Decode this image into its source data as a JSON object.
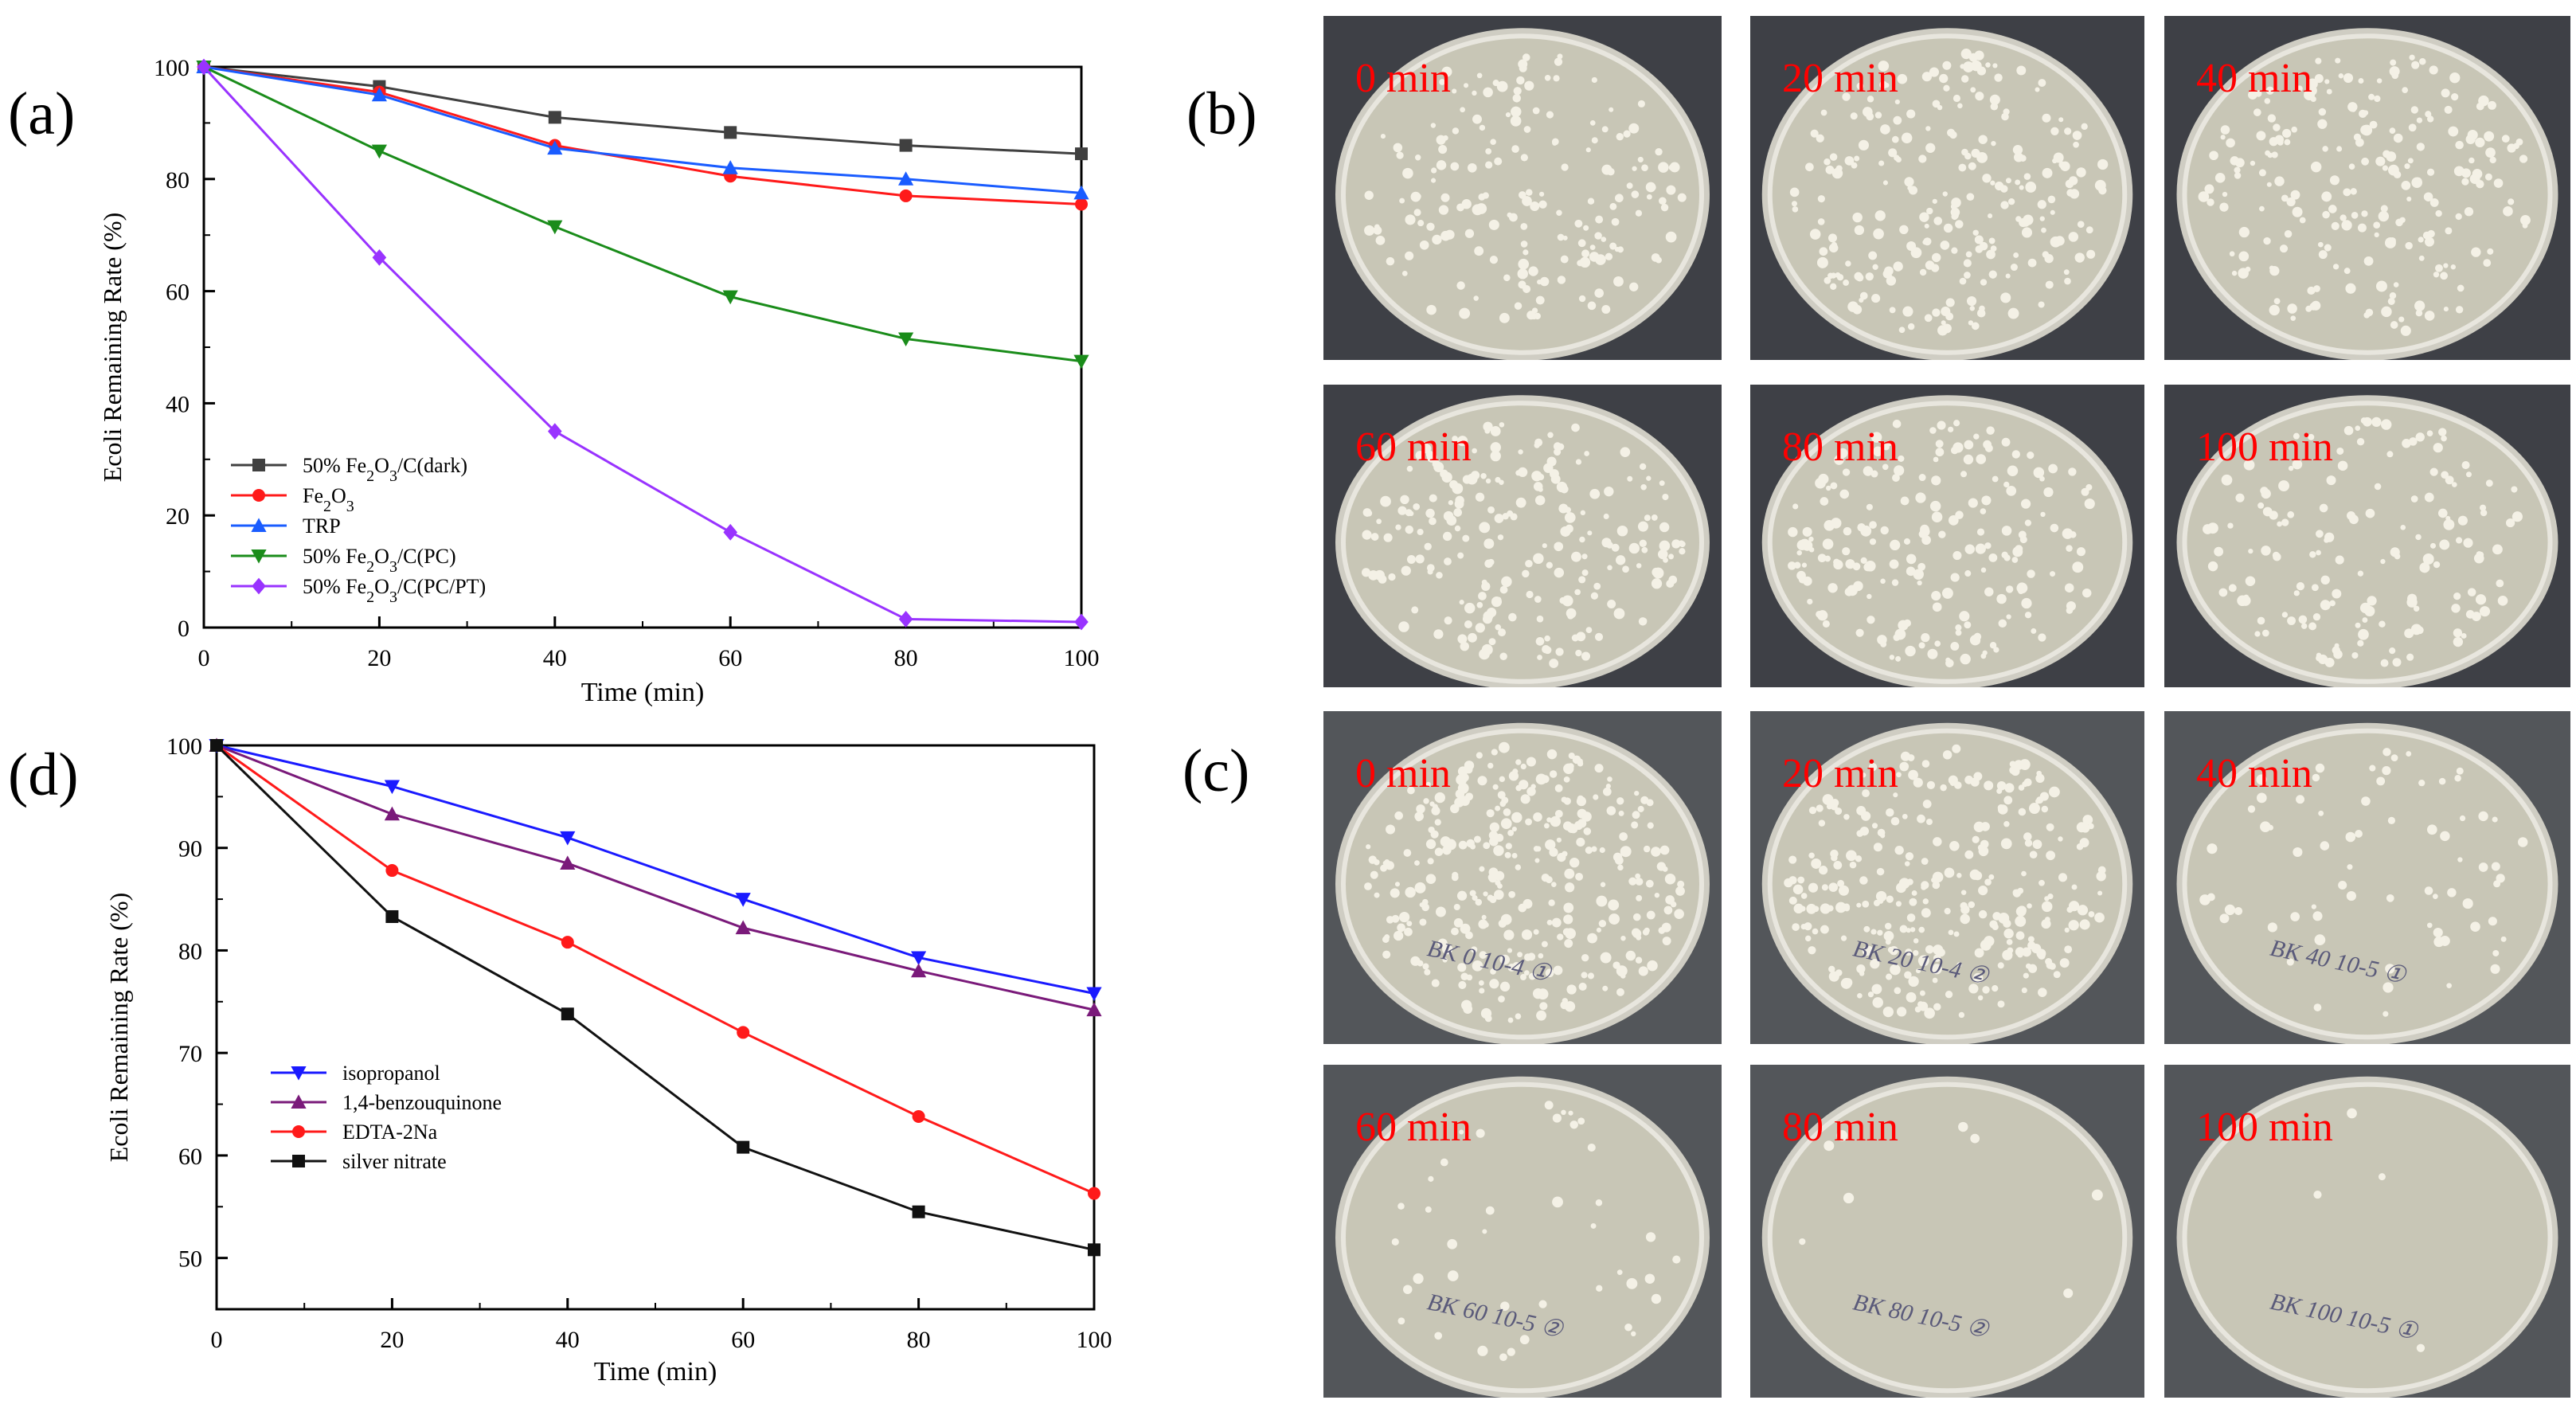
{
  "labels": {
    "a": "(a)",
    "b": "(b)",
    "c": "(c)",
    "d": "(d)"
  },
  "chart_data": [
    {
      "type": "line",
      "panel": "(a)",
      "xlabel": "Time (min)",
      "ylabel": "Ecoli Remaining Rate (%)",
      "xlim": [
        0,
        100
      ],
      "ylim": [
        0,
        100
      ],
      "xticks": [
        0,
        20,
        40,
        60,
        80,
        100
      ],
      "yticks": [
        0,
        20,
        40,
        60,
        80,
        100
      ],
      "x": [
        0,
        20,
        40,
        60,
        80,
        100
      ],
      "legend_position": "bottom-left",
      "series": [
        {
          "name": "50% Fe2O3/C(dark)",
          "color": "#404040",
          "marker": "square",
          "values": [
            100,
            96.5,
            91,
            88.3,
            86,
            84.5
          ]
        },
        {
          "name": "Fe2O3",
          "color": "#ff1a1a",
          "marker": "circle",
          "values": [
            100,
            95.5,
            86,
            80.5,
            77,
            75.5
          ]
        },
        {
          "name": "TRP",
          "color": "#1a5cff",
          "marker": "triangle-up",
          "values": [
            100,
            95,
            85.5,
            82,
            80,
            77.5
          ]
        },
        {
          "name": "50% Fe2O3/C(PC)",
          "color": "#1a8c1a",
          "marker": "triangle-down",
          "values": [
            100,
            85,
            71.5,
            59,
            51.5,
            47.5
          ]
        },
        {
          "name": "50% Fe2O3/C(PC/PT)",
          "color": "#9933ff",
          "marker": "diamond",
          "values": [
            100,
            66,
            35,
            17,
            1.5,
            1
          ]
        }
      ]
    },
    {
      "type": "line",
      "panel": "(d)",
      "xlabel": "Time (min)",
      "ylabel": "Ecoli Remaining Rate (%)",
      "xlim": [
        0,
        100
      ],
      "ylim": [
        45,
        100
      ],
      "xticks": [
        0,
        20,
        40,
        60,
        80,
        100
      ],
      "yticks": [
        50,
        60,
        70,
        80,
        90,
        100
      ],
      "x": [
        0,
        20,
        40,
        60,
        80,
        100
      ],
      "legend_position": "bottom-left",
      "series": [
        {
          "name": "isopropanol",
          "color": "#1a1aff",
          "marker": "triangle-down",
          "values": [
            100,
            96,
            91,
            85,
            79.3,
            75.8
          ]
        },
        {
          "name": "1,4-benzouquinone",
          "color": "#7a1a7a",
          "marker": "triangle-up",
          "values": [
            100,
            93.3,
            88.5,
            82.2,
            78,
            74.2
          ]
        },
        {
          "name": "EDTA-2Na",
          "color": "#ff1a1a",
          "marker": "circle",
          "values": [
            100,
            87.8,
            80.8,
            72,
            63.8,
            56.3
          ]
        },
        {
          "name": "silver nitrate",
          "color": "#111111",
          "marker": "square",
          "values": [
            100,
            83.3,
            73.8,
            60.8,
            54.5,
            50.8
          ]
        }
      ]
    }
  ],
  "photos_b": [
    "0 min",
    "20 min",
    "40 min",
    "60 min",
    "80 min",
    "100 min"
  ],
  "photos_c": [
    "0 min",
    "20 min",
    "40 min",
    "60 min",
    "80 min",
    "100 min"
  ],
  "dish_writing_c": [
    "BK 0 10-4 ①",
    "BK 20 10-4 ②",
    "BK 40 10-5 ①",
    "BK 60 10-5 ②",
    "BK 80 10-5 ②",
    "BK 100 10-5 ①"
  ],
  "colors": {
    "photo_label": "#ff0000",
    "photo_bg_b": "#3e4046",
    "photo_bg_c": "#53565a"
  }
}
